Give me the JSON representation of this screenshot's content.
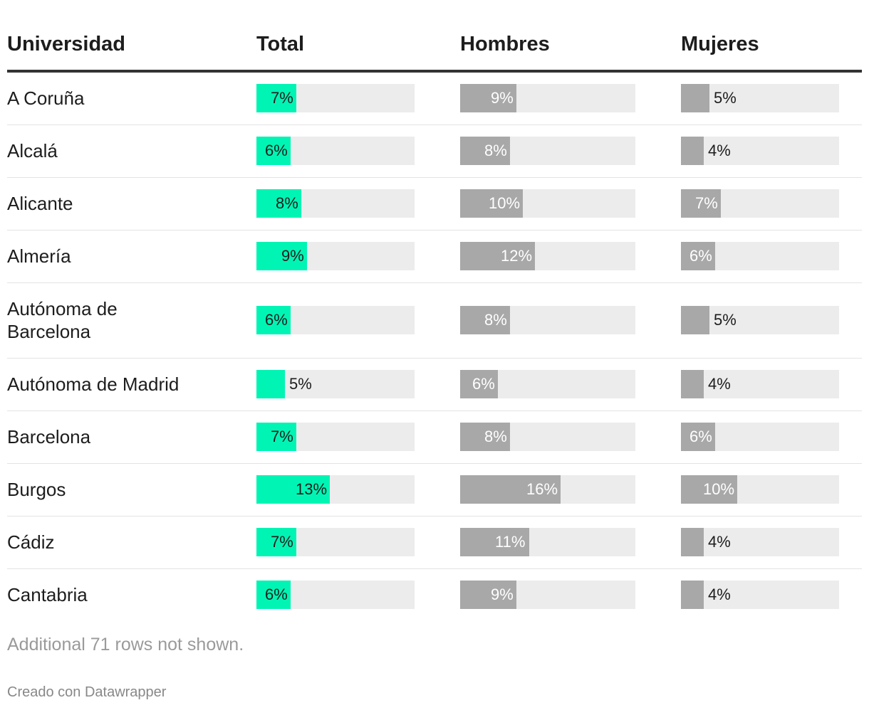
{
  "chart_data": {
    "type": "table",
    "columns": [
      "Universidad",
      "Total",
      "Hombres",
      "Mujeres"
    ],
    "scale_max": 28,
    "colors": {
      "total": "#00f5b4",
      "gender": "#a8a8a8",
      "track": "#ececec"
    },
    "rows": [
      {
        "name": "A Coruña",
        "total": 7,
        "hombres": 9,
        "mujeres": 5
      },
      {
        "name": "Alcalá",
        "total": 6,
        "hombres": 8,
        "mujeres": 4
      },
      {
        "name": "Alicante",
        "total": 8,
        "hombres": 10,
        "mujeres": 7
      },
      {
        "name": "Almería",
        "total": 9,
        "hombres": 12,
        "mujeres": 6
      },
      {
        "name": "Autónoma de Barcelona",
        "total": 6,
        "hombres": 8,
        "mujeres": 5
      },
      {
        "name": "Autónoma de Madrid",
        "total": 5,
        "hombres": 6,
        "mujeres": 4
      },
      {
        "name": "Barcelona",
        "total": 7,
        "hombres": 8,
        "mujeres": 6
      },
      {
        "name": "Burgos",
        "total": 13,
        "hombres": 16,
        "mujeres": 10
      },
      {
        "name": "Cádiz",
        "total": 7,
        "hombres": 11,
        "mujeres": 4
      },
      {
        "name": "Cantabria",
        "total": 6,
        "hombres": 9,
        "mujeres": 4
      }
    ]
  },
  "footnote": "Additional 71 rows not shown.",
  "credit": "Creado con Datawrapper"
}
